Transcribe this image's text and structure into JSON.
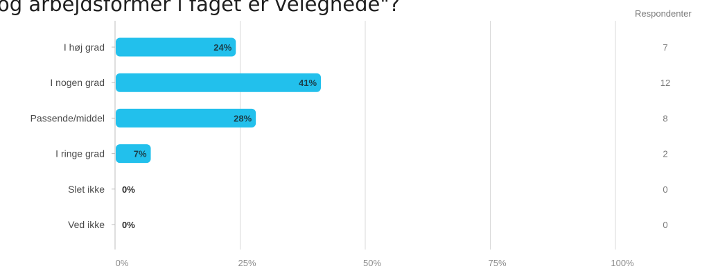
{
  "title": "og arbejdsformer i faget er velegnede\"?",
  "respondents_header": "Respondenter",
  "chart_data": {
    "type": "bar",
    "orientation": "horizontal",
    "categories": [
      "I høj grad",
      "I nogen grad",
      "Passende/middel",
      "I ringe grad",
      "Slet ikke",
      "Ved ikke"
    ],
    "values": [
      24,
      41,
      28,
      7,
      0,
      0
    ],
    "value_labels": [
      "24%",
      "41%",
      "28%",
      "7%",
      "0%",
      "0%"
    ],
    "respondents": [
      "7",
      "12",
      "8",
      "2",
      "0",
      "0"
    ],
    "x_ticks": [
      "0%",
      "25%",
      "50%",
      "75%",
      "100%"
    ],
    "xlim": [
      0,
      100
    ],
    "bar_color": "#22c0ec",
    "grid": true
  }
}
